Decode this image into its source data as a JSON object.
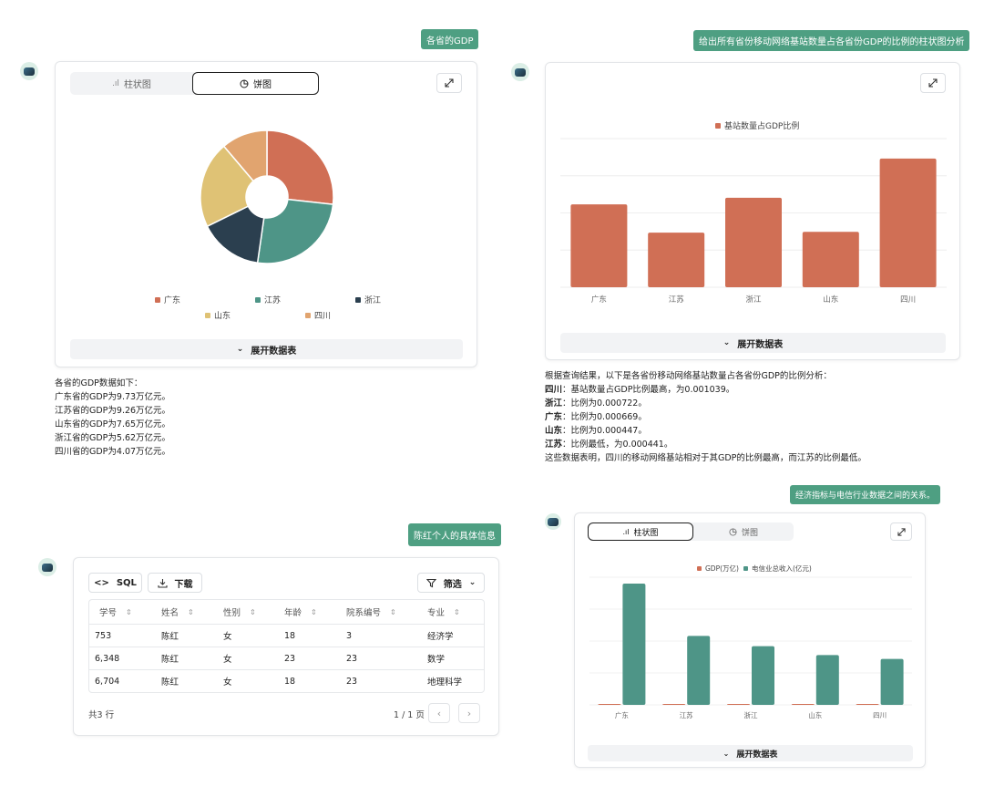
{
  "messages": {
    "q1": "各省的GDP",
    "q2": "给出所有省份移动网络基站数量占各省份GDP的比例的柱状图分析",
    "q3": "陈红个人的具体信息",
    "q4": "经济指标与电信行业数据之间的关系。"
  },
  "common": {
    "bar_tab": "柱状图",
    "pie_tab": "饼图",
    "expand_data": "展开数据表"
  },
  "colors": {
    "accent": "#4e9f82",
    "guangdong": "#d06f55",
    "jiangsu": "#4e9587",
    "zhejiang": "#2b3f4f",
    "shandong": "#dfc275",
    "sichuan": "#e1a46f"
  },
  "gdp_card": {
    "legend": [
      "广东",
      "江苏",
      "浙江",
      "山东",
      "四川"
    ],
    "text": {
      "intro": "各省的GDP数据如下：",
      "lines": [
        "广东省的GDP为9.73万亿元。",
        "江苏省的GDP为9.26万亿元。",
        "山东省的GDP为7.65万亿元。",
        "浙江省的GDP为5.62万亿元。",
        "四川省的GDP为4.07万亿元。"
      ]
    }
  },
  "ratio_card": {
    "legend": "基站数量占GDP比例",
    "text": {
      "intro": "根据查询结果，以下是各省份移动网络基站数量占各省份GDP的比例分析：",
      "items": [
        {
          "label": "四川",
          "text": "：基站数量占GDP比例最高，为0.001039。"
        },
        {
          "label": "浙江",
          "text": "：比例为0.000722。"
        },
        {
          "label": "广东",
          "text": "：比例为0.000669。"
        },
        {
          "label": "山东",
          "text": "：比例为0.000447。"
        },
        {
          "label": "江苏",
          "text": "：比例最低，为0.000441。"
        }
      ],
      "conclusion": "这些数据表明，四川的移动网络基站相对于其GDP的比例最高，而江苏的比例最低。"
    }
  },
  "table_card": {
    "sql_button": "SQL",
    "download_button": "下载",
    "filter_button": "筛选",
    "columns": [
      "学号",
      "姓名",
      "性别",
      "年龄",
      "院系编号",
      "专业"
    ],
    "rows": [
      [
        "753",
        "陈红",
        "女",
        "18",
        "3",
        "经济学"
      ],
      [
        "6,348",
        "陈红",
        "女",
        "23",
        "23",
        "数学"
      ],
      [
        "6,704",
        "陈红",
        "女",
        "18",
        "23",
        "地理科学"
      ]
    ],
    "total": "共3 行",
    "page_info": "1 / 1 页"
  },
  "econ_card": {
    "legend": [
      "GDP(万亿)",
      "电信业总收入(亿元)"
    ]
  },
  "chart_data": [
    {
      "type": "pie",
      "variant": "donut",
      "categories": [
        "广东",
        "江苏",
        "浙江",
        "山东",
        "四川"
      ],
      "values": [
        9.73,
        9.26,
        5.62,
        7.65,
        4.07
      ],
      "unit": "万亿元",
      "legend_position": "bottom"
    },
    {
      "type": "bar",
      "categories": [
        "广东",
        "江苏",
        "浙江",
        "山东",
        "四川"
      ],
      "series": [
        {
          "name": "基站数量占GDP比例",
          "values": [
            0.000669,
            0.000441,
            0.000722,
            0.000447,
            0.001039
          ]
        }
      ],
      "ylim": [
        0,
        0.0012
      ],
      "grid": true,
      "legend_position": "top"
    },
    {
      "type": "bar",
      "categories": [
        "广东",
        "江苏",
        "浙江",
        "山东",
        "四川"
      ],
      "series": [
        {
          "name": "GDP(万亿)",
          "values": [
            9.73,
            9.26,
            5.62,
            7.65,
            4.07
          ]
        },
        {
          "name": "电信业总收入(亿元)",
          "values": [
            1900,
            1080,
            920,
            780,
            720
          ]
        }
      ],
      "ylim": [
        0,
        2000
      ],
      "grid": true,
      "legend_position": "top"
    }
  ]
}
